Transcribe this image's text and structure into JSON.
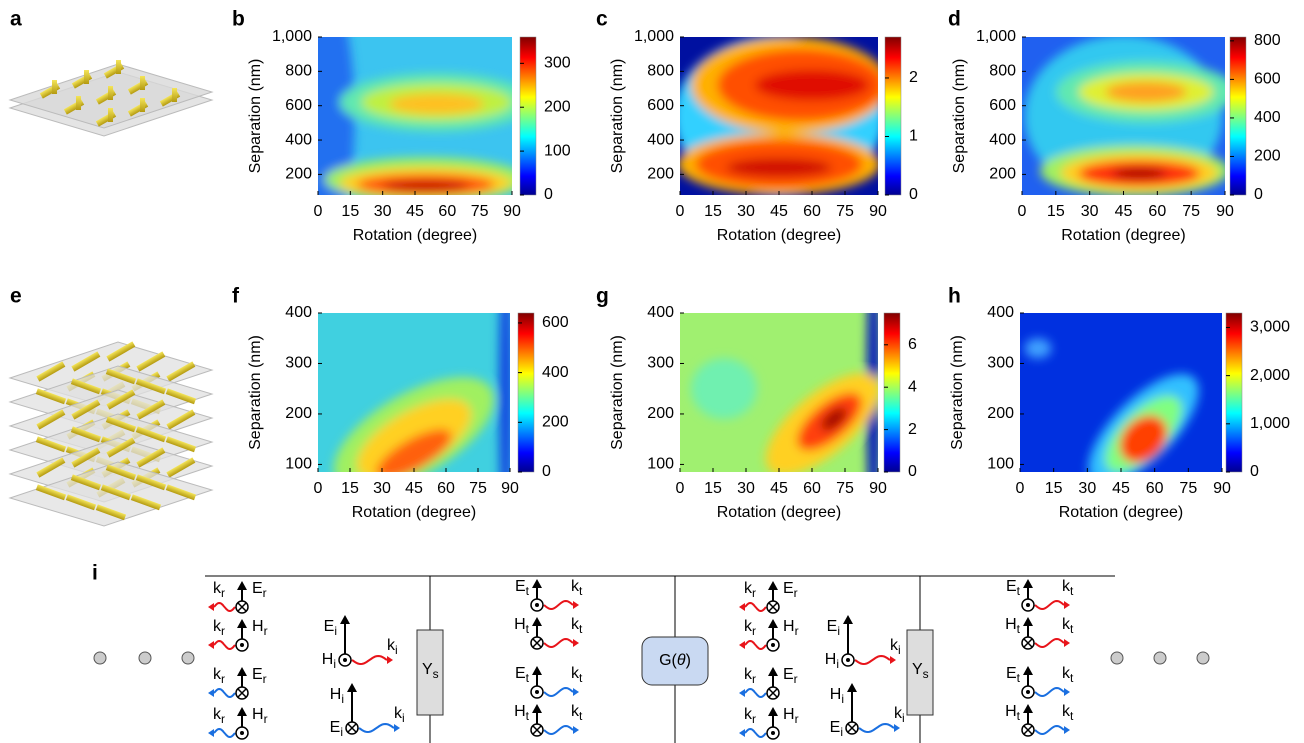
{
  "chart_data": [
    {
      "type": "heatmap",
      "label": "b",
      "xlabel": "Rotation (degree)",
      "ylabel": "Separation (nm)",
      "xlim": [
        0,
        90
      ],
      "xticks": [
        0,
        15,
        30,
        45,
        60,
        75,
        90
      ],
      "ylim": [
        80,
        1000
      ],
      "yticks": [
        200,
        400,
        600,
        800,
        {
          "value": 1000,
          "label": "1,000"
        }
      ],
      "colorbar": {
        "lim": [
          0,
          360
        ],
        "ticks": [
          0,
          100,
          200,
          300
        ]
      }
    },
    {
      "type": "heatmap",
      "label": "c",
      "xlabel": "Rotation (degree)",
      "ylabel": "Separation (nm)",
      "xlim": [
        0,
        90
      ],
      "xticks": [
        0,
        15,
        30,
        45,
        60,
        75,
        90
      ],
      "ylim": [
        80,
        1000
      ],
      "yticks": [
        200,
        400,
        600,
        800,
        {
          "value": 1000,
          "label": "1,000"
        }
      ],
      "colorbar": {
        "lim": [
          0,
          2.7
        ],
        "ticks": [
          0,
          1,
          2
        ]
      }
    },
    {
      "type": "heatmap",
      "label": "d",
      "xlabel": "Rotation (degree)",
      "ylabel": "Separation (nm)",
      "xlim": [
        0,
        90
      ],
      "xticks": [
        0,
        15,
        30,
        45,
        60,
        75,
        90
      ],
      "ylim": [
        80,
        1000
      ],
      "yticks": [
        200,
        400,
        600,
        800,
        {
          "value": 1000,
          "label": "1,000"
        }
      ],
      "colorbar": {
        "lim": [
          0,
          820
        ],
        "ticks": [
          0,
          200,
          400,
          600,
          800
        ]
      }
    },
    {
      "type": "heatmap",
      "label": "f",
      "xlabel": "Rotation (degree)",
      "ylabel": "Separation (nm)",
      "xlim": [
        0,
        90
      ],
      "xticks": [
        0,
        15,
        30,
        45,
        60,
        75,
        90
      ],
      "ylim": [
        85,
        400
      ],
      "yticks": [
        100,
        200,
        300,
        400
      ],
      "colorbar": {
        "lim": [
          0,
          640
        ],
        "ticks": [
          0,
          200,
          400,
          600
        ]
      }
    },
    {
      "type": "heatmap",
      "label": "g",
      "xlabel": "Rotation (degree)",
      "ylabel": "Separation (nm)",
      "xlim": [
        0,
        90
      ],
      "xticks": [
        0,
        15,
        30,
        45,
        60,
        75,
        90
      ],
      "ylim": [
        85,
        400
      ],
      "yticks": [
        100,
        200,
        300,
        400
      ],
      "colorbar": {
        "lim": [
          0,
          7.5
        ],
        "ticks": [
          0,
          2,
          4,
          6
        ]
      }
    },
    {
      "type": "heatmap",
      "label": "h",
      "xlabel": "Rotation (degree)",
      "ylabel": "Separation (nm)",
      "xlim": [
        0,
        90
      ],
      "xticks": [
        0,
        15,
        30,
        45,
        60,
        75,
        90
      ],
      "ylim": [
        85,
        400
      ],
      "yticks": [
        100,
        200,
        300,
        400
      ],
      "colorbar": {
        "lim": [
          0,
          3300
        ],
        "ticks": [
          0,
          {
            "value": 1000,
            "label": "1,000"
          },
          {
            "value": 2000,
            "label": "2,000"
          },
          {
            "value": 3000,
            "label": "3,000"
          }
        ]
      }
    }
  ],
  "illustrations": [
    {
      "label": "a"
    },
    {
      "label": "e"
    }
  ],
  "diagram": {
    "label": "i",
    "ys": [
      "Y",
      "s"
    ],
    "operator": [
      "G(",
      "θ",
      ")"
    ],
    "glyphs": [
      {
        "k": [
          "k",
          "r"
        ],
        "a": [
          "E",
          "r"
        ],
        "color": "#e8141a",
        "marker": "cross"
      },
      {
        "k": [
          "k",
          "r"
        ],
        "a": [
          "H",
          "r"
        ],
        "color": "#e8141a",
        "marker": "dot"
      },
      {
        "k": [
          "k",
          "r"
        ],
        "a": [
          "E",
          "r"
        ],
        "color": "#1a6fe0",
        "marker": "cross"
      },
      {
        "k": [
          "k",
          "r"
        ],
        "a": [
          "H",
          "r"
        ],
        "color": "#1a6fe0",
        "marker": "dot"
      },
      {
        "k": [
          "k",
          "i"
        ],
        "a": [
          "E",
          "i"
        ],
        "c": [
          "H",
          "i"
        ],
        "color": "#e8141a",
        "marker": "dot"
      },
      {
        "k": [
          "k",
          "i"
        ],
        "a": [
          "H",
          "i"
        ],
        "c": [
          "E",
          "i"
        ],
        "color": "#1a6fe0",
        "marker": "cross"
      },
      {
        "k": [
          "k",
          "t"
        ],
        "a": [
          "E",
          "t"
        ],
        "color": "#e8141a",
        "marker": "dot"
      },
      {
        "k": [
          "k",
          "t"
        ],
        "a": [
          "H",
          "t"
        ],
        "color": "#e8141a",
        "marker": "cross"
      },
      {
        "k": [
          "k",
          "t"
        ],
        "a": [
          "E",
          "t"
        ],
        "color": "#1a6fe0",
        "marker": "dot"
      },
      {
        "k": [
          "k",
          "t"
        ],
        "a": [
          "H",
          "t"
        ],
        "color": "#1a6fe0",
        "marker": "cross"
      },
      {
        "k": [
          "k",
          "r"
        ],
        "a": [
          "E",
          "r"
        ],
        "color": "#e8141a",
        "marker": "cross"
      },
      {
        "k": [
          "k",
          "r"
        ],
        "a": [
          "H",
          "r"
        ],
        "color": "#e8141a",
        "marker": "dot"
      },
      {
        "k": [
          "k",
          "r"
        ],
        "a": [
          "E",
          "r"
        ],
        "color": "#1a6fe0",
        "marker": "cross"
      },
      {
        "k": [
          "k",
          "r"
        ],
        "a": [
          "H",
          "r"
        ],
        "color": "#1a6fe0",
        "marker": "dot"
      },
      {
        "k": [
          "k",
          "i"
        ],
        "a": [
          "E",
          "i"
        ],
        "c": [
          "H",
          "i"
        ],
        "color": "#e8141a",
        "marker": "dot"
      },
      {
        "k": [
          "k",
          "i"
        ],
        "a": [
          "H",
          "i"
        ],
        "c": [
          "E",
          "i"
        ],
        "color": "#1a6fe0",
        "marker": "cross"
      },
      {
        "k": [
          "k",
          "t"
        ],
        "a": [
          "E",
          "t"
        ],
        "color": "#e8141a",
        "marker": "dot"
      },
      {
        "k": [
          "k",
          "t"
        ],
        "a": [
          "H",
          "t"
        ],
        "color": "#e8141a",
        "marker": "cross"
      },
      {
        "k": [
          "k",
          "t"
        ],
        "a": [
          "E",
          "t"
        ],
        "color": "#1a6fe0",
        "marker": "dot"
      },
      {
        "k": [
          "k",
          "t"
        ],
        "a": [
          "H",
          "t"
        ],
        "color": "#1a6fe0",
        "marker": "cross"
      }
    ]
  }
}
